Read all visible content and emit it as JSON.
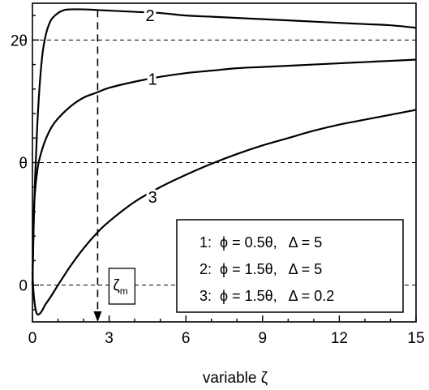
{
  "chart_data": {
    "type": "line",
    "xlabel": "variable ζ",
    "ylabel": "",
    "xlim": [
      0,
      15
    ],
    "ylim": [
      -0.3,
      2.3
    ],
    "x_ticks": [
      0,
      3,
      6,
      9,
      12,
      15
    ],
    "y_ticks": [
      {
        "value": 0,
        "label": "0"
      },
      {
        "value": 1,
        "label": "θ"
      },
      {
        "value": 2,
        "label": "2θ"
      }
    ],
    "grid": "dashed horizontal lines at 0, θ, 2θ",
    "series": [
      {
        "name": "1",
        "x": [
          0,
          0.05,
          0.1,
          0.2,
          0.3,
          0.5,
          0.75,
          1,
          1.5,
          2,
          2.5,
          3,
          4,
          5,
          6,
          7,
          8,
          9,
          10,
          11,
          12,
          13,
          14,
          15
        ],
        "y": [
          0,
          0.55,
          0.76,
          0.95,
          1.05,
          1.18,
          1.29,
          1.36,
          1.46,
          1.53,
          1.57,
          1.61,
          1.66,
          1.7,
          1.73,
          1.75,
          1.77,
          1.78,
          1.79,
          1.8,
          1.81,
          1.82,
          1.83,
          1.84
        ]
      },
      {
        "name": "2",
        "x": [
          0,
          0.05,
          0.1,
          0.15,
          0.2,
          0.3,
          0.4,
          0.5,
          0.6,
          0.75,
          1,
          1.25,
          1.5,
          2,
          2.5,
          3,
          4,
          5,
          6,
          7,
          8,
          9,
          10,
          11,
          12,
          13,
          14,
          15
        ],
        "y": [
          0,
          0.5,
          0.85,
          1.1,
          1.35,
          1.68,
          1.9,
          2.02,
          2.1,
          2.17,
          2.22,
          2.245,
          2.25,
          2.25,
          2.245,
          2.24,
          2.23,
          2.22,
          2.2,
          2.19,
          2.18,
          2.17,
          2.16,
          2.15,
          2.14,
          2.13,
          2.12,
          2.1
        ]
      },
      {
        "name": "3",
        "x": [
          0,
          0.03,
          0.06,
          0.1,
          0.15,
          0.2,
          0.3,
          0.4,
          0.5,
          0.7,
          1,
          1.5,
          2,
          2.5,
          3,
          4,
          5,
          6,
          7,
          8,
          9,
          10,
          11,
          12,
          13,
          14,
          15
        ],
        "y": [
          0.1,
          -0.02,
          -0.1,
          -0.17,
          -0.22,
          -0.24,
          -0.23,
          -0.2,
          -0.16,
          -0.1,
          0,
          0.16,
          0.3,
          0.42,
          0.52,
          0.68,
          0.8,
          0.9,
          0.99,
          1.07,
          1.14,
          1.2,
          1.26,
          1.31,
          1.35,
          1.39,
          1.43
        ]
      }
    ],
    "curve_labels": [
      {
        "text": "1",
        "x": 4.7,
        "y": 1.68
      },
      {
        "text": "2",
        "x": 4.6,
        "y": 2.2
      },
      {
        "text": "3",
        "x": 4.7,
        "y": 0.72
      }
    ],
    "marker": {
      "x": 2.55,
      "label": "ζ",
      "sub": "m"
    },
    "legend": {
      "position": "bottom-right",
      "entries": [
        "1:  ϕ = 0.5θ,   Δ = 5",
        "2:  ϕ = 1.5θ,   Δ = 5",
        "3:  ϕ = 1.5θ,   Δ = 0.2"
      ]
    }
  }
}
